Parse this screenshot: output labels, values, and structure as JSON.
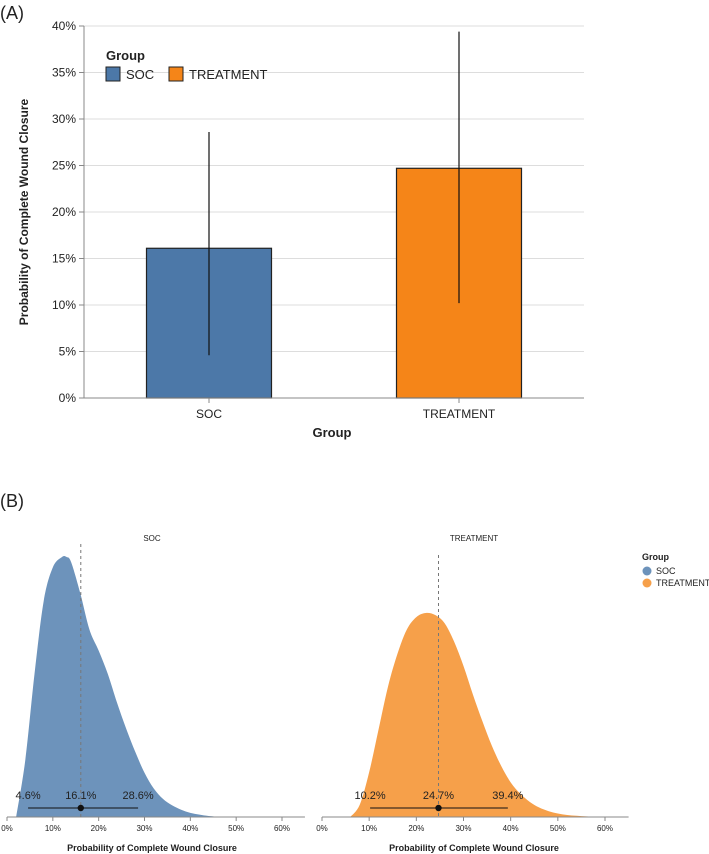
{
  "panels": {
    "a_label": "(A)",
    "b_label": "(B)"
  },
  "colors": {
    "soc": "#4C78A8",
    "treatment": "#F58518",
    "soc_light": "#6D93BB",
    "treatment_light": "#F6A04A"
  },
  "chart_data": [
    {
      "id": "A",
      "type": "bar",
      "title": "",
      "xlabel": "Group",
      "ylabel": "Probability of Complete Wound Closure",
      "categories": [
        "SOC",
        "TREATMENT"
      ],
      "values": [
        16.1,
        24.7
      ],
      "error_low": [
        4.6,
        10.2
      ],
      "error_high": [
        28.6,
        39.4
      ],
      "ylim": [
        0,
        40
      ],
      "yticks": [
        0,
        5,
        10,
        15,
        20,
        25,
        30,
        35,
        40
      ],
      "ytick_labels": [
        "0%",
        "5%",
        "10%",
        "15%",
        "20%",
        "25%",
        "30%",
        "35%",
        "40%"
      ],
      "grid": true,
      "legend": {
        "title": "Group",
        "position": "top-left",
        "entries": [
          "SOC",
          "TREATMENT"
        ]
      }
    },
    {
      "id": "B",
      "type": "area",
      "xlabel": "Probability of Complete Wound Closure",
      "xlim": [
        0,
        65
      ],
      "xticks": [
        0,
        10,
        20,
        30,
        40,
        50,
        60
      ],
      "xtick_labels": [
        "0%",
        "10%",
        "20%",
        "30%",
        "40%",
        "50%",
        "60%"
      ],
      "legend": {
        "title": "Group",
        "position": "right",
        "entries": [
          "SOC",
          "TREATMENT"
        ]
      },
      "facets": [
        {
          "name": "SOC",
          "median": 16.1,
          "low": 4.6,
          "high": 28.6,
          "median_label": "16.1%",
          "low_label": "4.6%",
          "high_label": "28.6%",
          "density_x": [
            2,
            4,
            6,
            8,
            10,
            12,
            13,
            14,
            16,
            18,
            20,
            22,
            24,
            26,
            28,
            30,
            32,
            34,
            36,
            38,
            40,
            42,
            44,
            47
          ],
          "density_y": [
            0.0,
            0.22,
            0.55,
            0.83,
            0.96,
            1.0,
            1.0,
            0.98,
            0.86,
            0.72,
            0.64,
            0.55,
            0.44,
            0.34,
            0.25,
            0.17,
            0.11,
            0.07,
            0.045,
            0.028,
            0.016,
            0.009,
            0.004,
            0.0
          ]
        },
        {
          "name": "TREATMENT",
          "median": 24.7,
          "low": 10.2,
          "high": 39.4,
          "median_label": "24.7%",
          "low_label": "10.2%",
          "high_label": "39.4%",
          "density_x": [
            6,
            8,
            10,
            12,
            14,
            16,
            18,
            20,
            22,
            24,
            26,
            28,
            30,
            32,
            34,
            36,
            38,
            40,
            42,
            44,
            46,
            48,
            50,
            52,
            54,
            56,
            58,
            60
          ],
          "density_y": [
            0.0,
            0.06,
            0.22,
            0.43,
            0.64,
            0.8,
            0.92,
            0.98,
            1.0,
            0.99,
            0.95,
            0.86,
            0.74,
            0.6,
            0.47,
            0.35,
            0.25,
            0.17,
            0.115,
            0.075,
            0.047,
            0.029,
            0.017,
            0.01,
            0.006,
            0.003,
            0.001,
            0.0
          ]
        }
      ]
    }
  ]
}
